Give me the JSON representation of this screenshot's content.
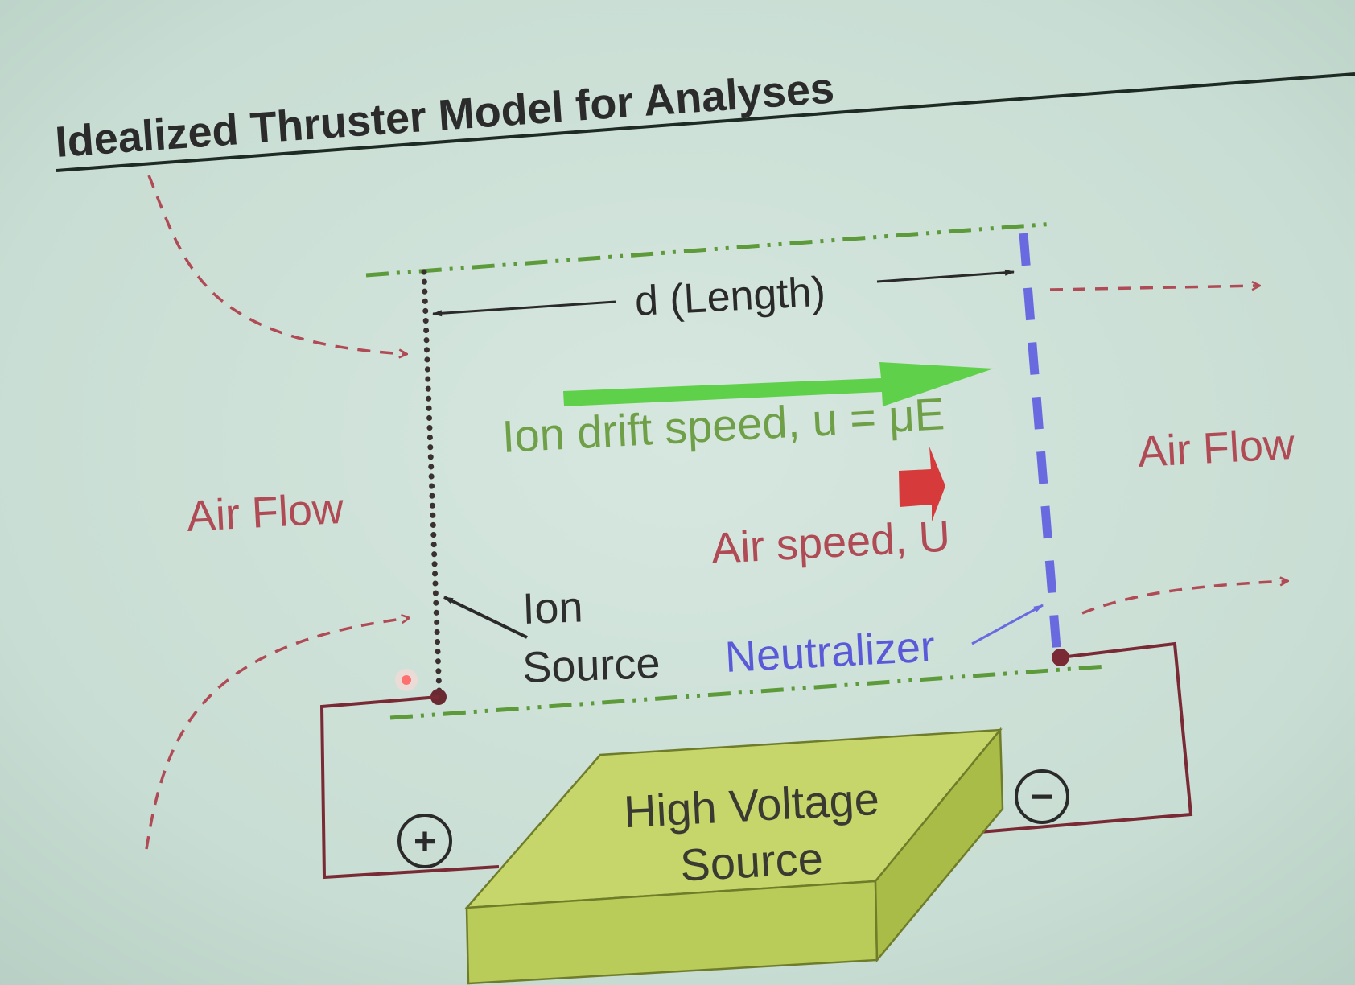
{
  "slide": {
    "title": "Idealized Thruster Model for Analyses",
    "background_color": "#c6dcd2",
    "title_color": "#2b2b2b"
  },
  "labels": {
    "length": "d (Length)",
    "ion_drift_speed": "Ion drift speed, u = μE",
    "air_speed": "Air speed, U",
    "air_flow_left": "Air Flow",
    "air_flow_right": "Air Flow",
    "ion_source_line1": "Ion",
    "ion_source_line2": "Source",
    "neutralizer": "Neutralizer",
    "hv_line1": "High Voltage",
    "hv_line2": "Source",
    "plus_terminal": "+",
    "minus_terminal": "−"
  },
  "colors": {
    "green_boundary": "#5c9a3a",
    "ion_arrow": "#5fd04a",
    "ion_text": "#6fa048",
    "air_red": "#b04a55",
    "air_arrow": "#d63a3a",
    "neutralizer_blue": "#6a6ae0",
    "neutralizer_text": "#5a5ad8",
    "wire": "#7a2a35",
    "dark": "#333333",
    "box_top": "#c6d66a",
    "box_front": "#b9cc5a",
    "box_side": "#a9bc48"
  }
}
